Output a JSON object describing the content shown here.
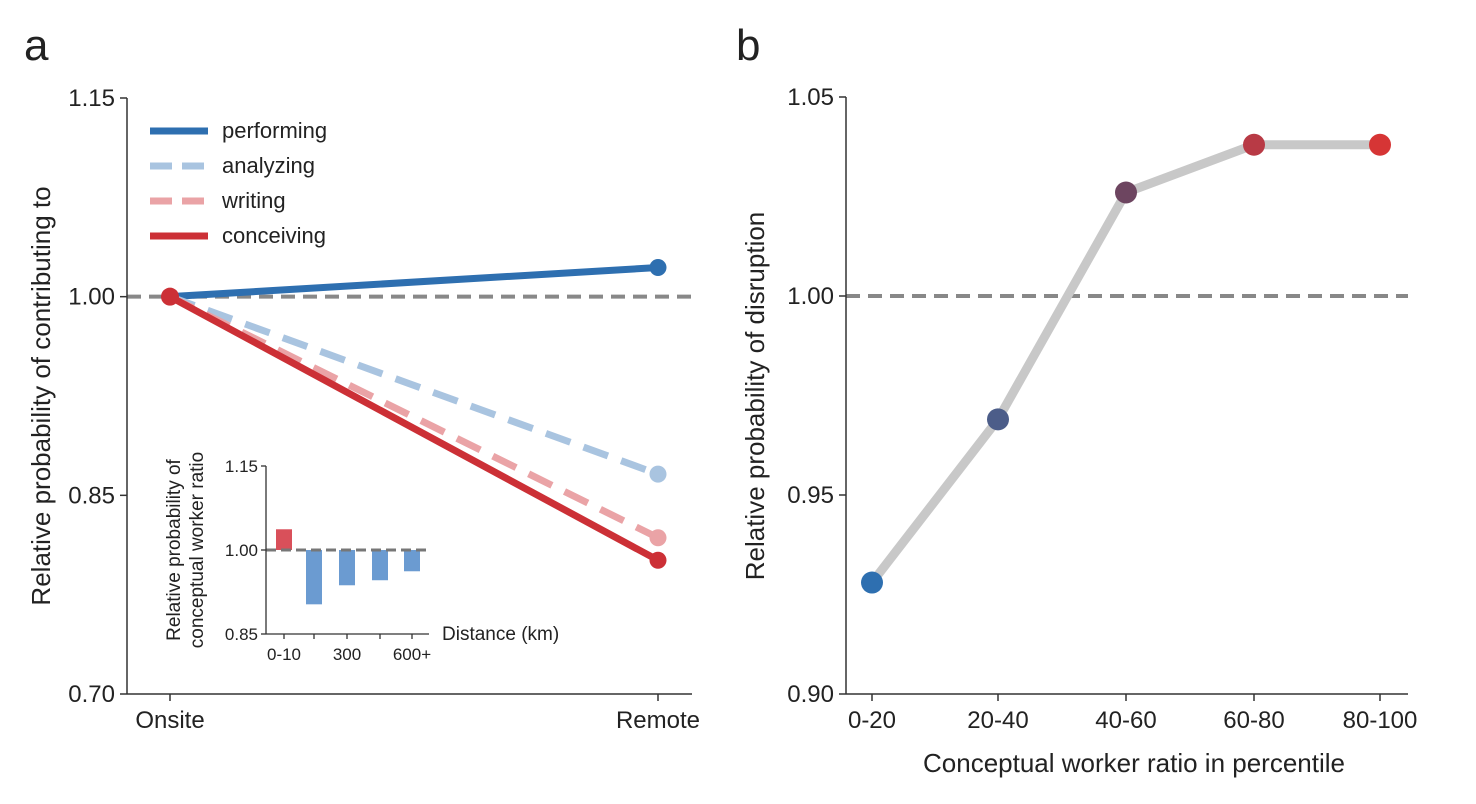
{
  "panels": {
    "a": "a",
    "b": "b"
  },
  "chart_data": [
    {
      "id": "a",
      "type": "line",
      "title": "",
      "xlabel": "",
      "ylabel": "Relative probability of contributing to",
      "categories": [
        "Onsite",
        "Remote"
      ],
      "ylim": [
        0.7,
        1.15
      ],
      "yticks": [
        "0.70",
        "0.85",
        "1.00",
        "1.15"
      ],
      "reference_line": 1.0,
      "legend_position": "top-left",
      "series": [
        {
          "name": "performing",
          "values": [
            1.0,
            1.022
          ],
          "color": "#2e6fb0",
          "dashed": false
        },
        {
          "name": "analyzing",
          "values": [
            1.0,
            0.866
          ],
          "color": "#a9c4e0",
          "dashed": true
        },
        {
          "name": "writing",
          "values": [
            1.0,
            0.818
          ],
          "color": "#eaa3a6",
          "dashed": true
        },
        {
          "name": "conceiving",
          "values": [
            1.0,
            0.801
          ],
          "color": "#cc3036",
          "dashed": false
        }
      ]
    },
    {
      "id": "a-inset",
      "type": "bar",
      "title": "",
      "xlabel": "Distance (km)",
      "ylabel": "Relative probability of conceptual worker ratio",
      "ylabel_lines": [
        "Relative probability of",
        "conceptual worker ratio"
      ],
      "categories": [
        "0-10",
        "",
        "300",
        "",
        "600+"
      ],
      "values": [
        1.037,
        0.903,
        0.937,
        0.946,
        0.962
      ],
      "colors": [
        "#d9505a",
        "#6b9bd1",
        "#6b9bd1",
        "#6b9bd1",
        "#6b9bd1"
      ],
      "ylim": [
        0.85,
        1.15
      ],
      "yticks": [
        "0.85",
        "1.00",
        "1.15"
      ],
      "reference_line": 1.0
    },
    {
      "id": "b",
      "type": "line",
      "title": "",
      "xlabel": "Conceptual worker ratio in percentile",
      "ylabel": "Relative probability of disruption",
      "categories": [
        "0-20",
        "20-40",
        "40-60",
        "60-80",
        "80-100"
      ],
      "values": [
        0.928,
        0.969,
        1.026,
        1.038,
        1.038
      ],
      "point_colors": [
        "#2e6fb0",
        "#4c5d89",
        "#6d4560",
        "#b83a45",
        "#d63535"
      ],
      "line_color": "#c8c8c8",
      "ylim": [
        0.9,
        1.05
      ],
      "yticks": [
        "0.90",
        "0.95",
        "1.00",
        "1.05"
      ],
      "reference_line": 1.0
    }
  ]
}
